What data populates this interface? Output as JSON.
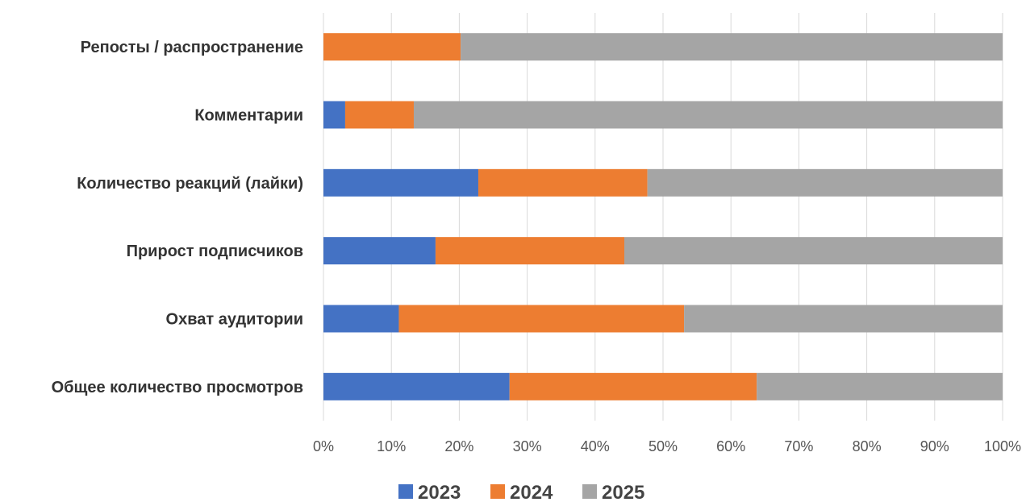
{
  "chart_data": {
    "type": "bar",
    "orientation": "horizontal",
    "stacking": "percent",
    "title": "",
    "xlabel": "",
    "ylabel": "",
    "categories": [
      "Репосты / распространение",
      "Комментарии",
      "Количество реакций (лайки)",
      "Прирост подписчиков",
      "Охват аудитории",
      "Общее количество просмотров"
    ],
    "series": [
      {
        "name": "2023",
        "color": "#4472C4",
        "values": [
          0.0,
          3.2,
          22.8,
          16.5,
          11.1,
          27.4
        ]
      },
      {
        "name": "2024",
        "color": "#ED7D31",
        "values": [
          20.2,
          10.1,
          24.9,
          27.8,
          42.0,
          36.4
        ]
      },
      {
        "name": "2025",
        "color": "#A5A5A5",
        "values": [
          79.8,
          86.7,
          52.3,
          55.7,
          46.9,
          36.2
        ]
      }
    ],
    "xlim": [
      0,
      100
    ],
    "x_ticks": [
      "0%",
      "10%",
      "20%",
      "30%",
      "40%",
      "50%",
      "60%",
      "70%",
      "80%",
      "90%",
      "100%"
    ],
    "grid": "vertical",
    "legend": "bottom"
  }
}
